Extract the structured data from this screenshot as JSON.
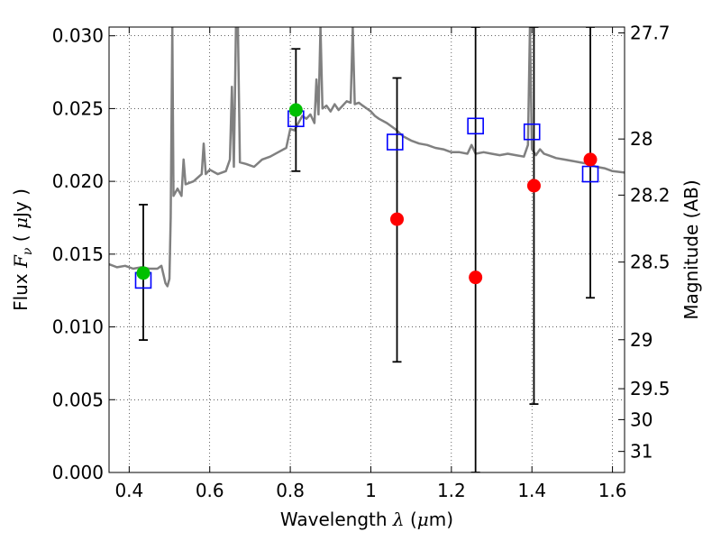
{
  "chart_data": {
    "type": "scatter",
    "xlabel": {
      "text": "Wavelength",
      "symbol": "λ",
      "unit_open": "(",
      "unit_mu": "μ",
      "unit_rest": "m)"
    },
    "ylabel": {
      "text": "Flux",
      "symbol": "F",
      "subscript": "ν",
      "unit_open": "(",
      "unit_mu": "μ",
      "unit_rest": "Jy )"
    },
    "y2label": "Magnitude (AB)",
    "xlim": [
      0.35,
      1.63
    ],
    "ylim": [
      0.0,
      0.0306
    ],
    "grid": true,
    "xticks": [
      {
        "v": 0.4,
        "label": "0.4"
      },
      {
        "v": 0.6,
        "label": "0.6"
      },
      {
        "v": 0.8,
        "label": "0.8"
      },
      {
        "v": 1.0,
        "label": "1"
      },
      {
        "v": 1.2,
        "label": "1.2"
      },
      {
        "v": 1.4,
        "label": "1.4"
      },
      {
        "v": 1.6,
        "label": "1.6"
      }
    ],
    "yticks": [
      {
        "v": 0.0,
        "label": "0.000"
      },
      {
        "v": 0.005,
        "label": "0.005"
      },
      {
        "v": 0.01,
        "label": "0.010"
      },
      {
        "v": 0.015,
        "label": "0.015"
      },
      {
        "v": 0.02,
        "label": "0.020"
      },
      {
        "v": 0.025,
        "label": "0.025"
      },
      {
        "v": 0.03,
        "label": "0.030"
      }
    ],
    "magnitude_ticks": [
      {
        "mag": 27.7,
        "label": "27.7"
      },
      {
        "mag": 28,
        "label": "28"
      },
      {
        "mag": 28.2,
        "label": "28.2"
      },
      {
        "mag": 28.5,
        "label": "28.5"
      },
      {
        "mag": 29,
        "label": "29"
      },
      {
        "mag": 29.5,
        "label": "29.5"
      },
      {
        "mag": 30,
        "label": "30"
      },
      {
        "mag": 31,
        "label": "31"
      }
    ],
    "model_spectrum": {
      "color": "#808080",
      "points": [
        [
          0.35,
          0.0143
        ],
        [
          0.37,
          0.0141
        ],
        [
          0.39,
          0.0142
        ],
        [
          0.41,
          0.014
        ],
        [
          0.43,
          0.0141
        ],
        [
          0.45,
          0.014
        ],
        [
          0.47,
          0.014
        ],
        [
          0.48,
          0.0142
        ],
        [
          0.49,
          0.013
        ],
        [
          0.495,
          0.0128
        ],
        [
          0.5,
          0.0133
        ],
        [
          0.503,
          0.0175
        ],
        [
          0.507,
          0.0306
        ],
        [
          0.51,
          0.019
        ],
        [
          0.52,
          0.0195
        ],
        [
          0.53,
          0.019
        ],
        [
          0.535,
          0.0215
        ],
        [
          0.54,
          0.0198
        ],
        [
          0.56,
          0.02
        ],
        [
          0.58,
          0.0205
        ],
        [
          0.585,
          0.0226
        ],
        [
          0.59,
          0.0205
        ],
        [
          0.6,
          0.0208
        ],
        [
          0.62,
          0.0205
        ],
        [
          0.64,
          0.0207
        ],
        [
          0.65,
          0.0215
        ],
        [
          0.655,
          0.0265
        ],
        [
          0.66,
          0.021
        ],
        [
          0.665,
          0.0306
        ],
        [
          0.67,
          0.0306
        ],
        [
          0.675,
          0.0213
        ],
        [
          0.69,
          0.0212
        ],
        [
          0.71,
          0.021
        ],
        [
          0.73,
          0.0215
        ],
        [
          0.75,
          0.0217
        ],
        [
          0.77,
          0.022
        ],
        [
          0.79,
          0.0223
        ],
        [
          0.8,
          0.0236
        ],
        [
          0.81,
          0.0235
        ],
        [
          0.82,
          0.024
        ],
        [
          0.83,
          0.0245
        ],
        [
          0.84,
          0.0243
        ],
        [
          0.85,
          0.0246
        ],
        [
          0.86,
          0.024
        ],
        [
          0.865,
          0.027
        ],
        [
          0.87,
          0.0246
        ],
        [
          0.875,
          0.0306
        ],
        [
          0.88,
          0.025
        ],
        [
          0.89,
          0.0252
        ],
        [
          0.9,
          0.0248
        ],
        [
          0.91,
          0.0253
        ],
        [
          0.92,
          0.0249
        ],
        [
          0.93,
          0.0252
        ],
        [
          0.94,
          0.0255
        ],
        [
          0.95,
          0.0254
        ],
        [
          0.955,
          0.0306
        ],
        [
          0.96,
          0.0253
        ],
        [
          0.97,
          0.0254
        ],
        [
          0.98,
          0.0252
        ],
        [
          0.99,
          0.025
        ],
        [
          1.0,
          0.0248
        ],
        [
          1.01,
          0.0245
        ],
        [
          1.02,
          0.0243
        ],
        [
          1.04,
          0.024
        ],
        [
          1.06,
          0.0236
        ],
        [
          1.08,
          0.0231
        ],
        [
          1.1,
          0.0228
        ],
        [
          1.12,
          0.0226
        ],
        [
          1.14,
          0.0225
        ],
        [
          1.16,
          0.0223
        ],
        [
          1.18,
          0.0222
        ],
        [
          1.2,
          0.022
        ],
        [
          1.22,
          0.022
        ],
        [
          1.24,
          0.0219
        ],
        [
          1.25,
          0.0225
        ],
        [
          1.26,
          0.0219
        ],
        [
          1.28,
          0.022
        ],
        [
          1.3,
          0.0219
        ],
        [
          1.32,
          0.0218
        ],
        [
          1.34,
          0.0219
        ],
        [
          1.36,
          0.0218
        ],
        [
          1.38,
          0.0217
        ],
        [
          1.39,
          0.0225
        ],
        [
          1.395,
          0.0306
        ],
        [
          1.4,
          0.0222
        ],
        [
          1.41,
          0.0218
        ],
        [
          1.42,
          0.0222
        ],
        [
          1.43,
          0.0219
        ],
        [
          1.44,
          0.0218
        ],
        [
          1.45,
          0.0217
        ],
        [
          1.46,
          0.0216
        ],
        [
          1.48,
          0.0215
        ],
        [
          1.5,
          0.0214
        ],
        [
          1.52,
          0.0213
        ],
        [
          1.54,
          0.0212
        ],
        [
          1.56,
          0.021
        ],
        [
          1.58,
          0.0209
        ],
        [
          1.6,
          0.0207
        ],
        [
          1.63,
          0.0206
        ]
      ]
    },
    "series": [
      {
        "kind": "model_photometry",
        "marker": "open-square",
        "color": "#0000ff",
        "points": [
          {
            "x": 0.435,
            "y": 0.0132
          },
          {
            "x": 0.814,
            "y": 0.0243
          },
          {
            "x": 1.06,
            "y": 0.0227
          },
          {
            "x": 1.26,
            "y": 0.0238
          },
          {
            "x": 1.4,
            "y": 0.0234
          },
          {
            "x": 1.545,
            "y": 0.0205
          }
        ]
      },
      {
        "kind": "observed_photometry",
        "marker": "filled-circle",
        "points": [
          {
            "x": 0.435,
            "y": 0.0137,
            "err_lo": 0.0091,
            "err_hi": 0.0184,
            "color": "#00c000"
          },
          {
            "x": 0.814,
            "y": 0.0249,
            "err_lo": 0.0207,
            "err_hi": 0.0291,
            "color": "#00c000"
          },
          {
            "x": 1.065,
            "y": 0.0174,
            "err_lo": 0.0076,
            "err_hi": 0.0271,
            "color": "#ff0000"
          },
          {
            "x": 1.26,
            "y": 0.0134,
            "err_lo": 0.0,
            "err_hi": 0.0306,
            "color": "#ff0000"
          },
          {
            "x": 1.405,
            "y": 0.0197,
            "err_lo": 0.0047,
            "err_hi": 0.0306,
            "color": "#ff0000"
          },
          {
            "x": 1.545,
            "y": 0.0215,
            "err_lo": 0.012,
            "err_hi": 0.0306,
            "color": "#ff0000"
          }
        ]
      }
    ]
  }
}
